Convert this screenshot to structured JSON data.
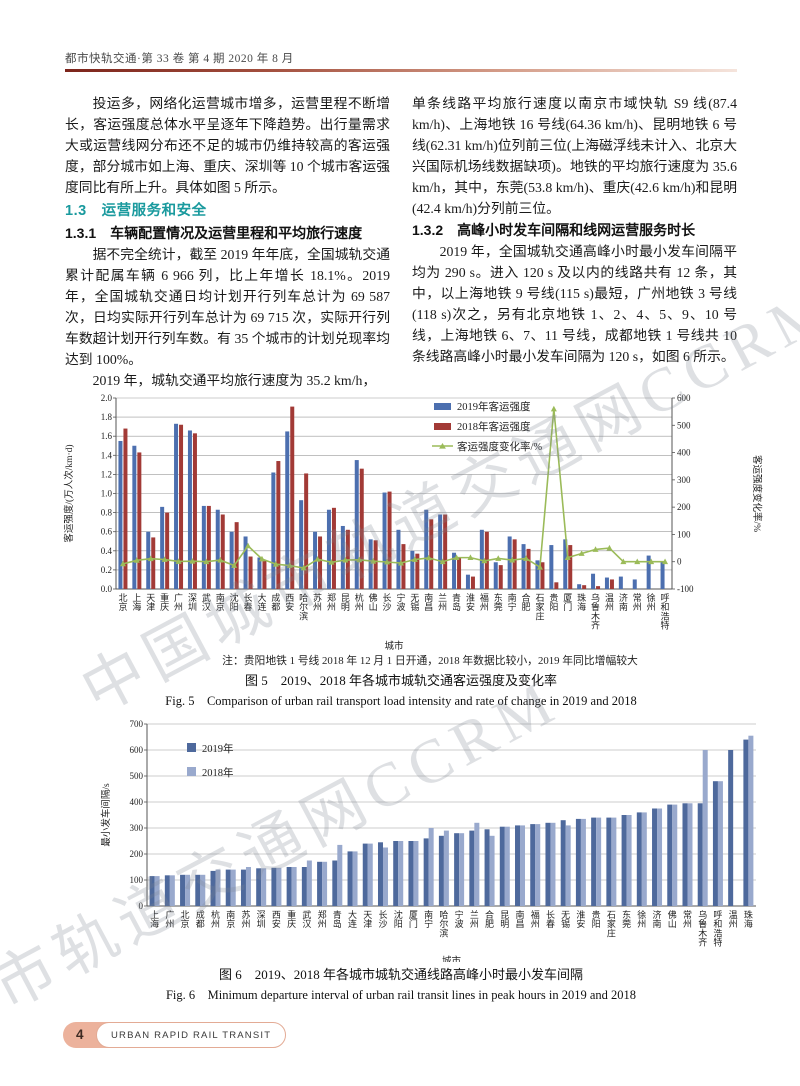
{
  "header": {
    "journal_line": "都市快轨交通·第 33 卷  第 4 期  2020 年 8 月"
  },
  "watermark": {
    "text": "中国城市轨道交通网CCRM"
  },
  "left_column": {
    "para1": "投运多，网络化运营城市增多，运营里程不断增长，客运强度总体水平呈逐年下降趋势。出行量需求大或运营线网分布还不足的城市仍维持较高的客运强度，部分城市如上海、重庆、深圳等 10 个城市客运强度同比有所上升。具体如图 5 所示。",
    "heading_1_3": "1.3　运营服务和安全",
    "heading_1_3_1": "1.3.1　车辆配置情况及运营里程和平均旅行速度",
    "para2": "据不完全统计，截至 2019 年年底，全国城轨交通累计配属车辆 6 966 列，比上年增长 18.1%。2019 年，全国城轨交通日均计划开行列车总计为 69 587 次，日均实际开行列车总计为 69 715 次，实际开行列车数超计划开行列车数。有 35 个城市的计划兑现率均达到 100%。",
    "para3": "2019 年，城轨交通平均旅行速度为 35.2 km/h，"
  },
  "right_column": {
    "para1": "单条线路平均旅行速度以南京市域快轨 S9 线(87.4 km/h)、上海地铁 16 号线(64.36 km/h)、昆明地铁 6 号线(62.31 km/h)位列前三位(上海磁浮线未计入、北京大兴国际机场线数据缺项)。地铁的平均旅行速度为 35.6 km/h，其中，东莞(53.8 km/h)、重庆(42.6 km/h)和昆明(42.4 km/h)分列前三位。",
    "heading_1_3_2": "1.3.2　高峰小时发车间隔和线网运营服务时长",
    "para2": "2019 年，全国城轨交通高峰小时最小发车间隔平均为 290 s。进入 120 s 及以内的线路共有 12 条，其中，以上海地铁 9 号线(115 s)最短，广州地铁 3 号线(118 s)次之，另有北京地铁 1、2、4、5、9、10 号线，上海地铁 6、7、11 号线，成都地铁 1 号线共 10 条线路高峰小时最小发车间隔为 120 s，如图 6 所示。"
  },
  "figure5": {
    "note": "注：贵阳地铁 1 号线 2018 年 12 月 1 日开通，2018 年数据比较小，2019 年同比增幅较大",
    "caption_zh": "图 5　2019、2018 年各城市城轨交通客运强度及变化率",
    "caption_en": "Fig. 5　Comparison of urban rail transport load intensity and rate of change in 2019 and 2018"
  },
  "figure6": {
    "caption_zh": "图 6　2019、2018 年各城市城轨交通线路高峰小时最小发车间隔",
    "caption_en": "Fig. 6　Minimum departure interval of urban rail transit lines in peak hours in 2019 and 2018"
  },
  "footer": {
    "page_number": "4",
    "journal_name": "URBAN RAPID RAIL TRANSIT"
  },
  "chart_data": [
    {
      "type": "bar",
      "title": "",
      "categories": [
        "北京",
        "上海",
        "天津",
        "重庆",
        "广州",
        "深圳",
        "武汉",
        "南京",
        "沈阳",
        "长春",
        "大连",
        "成都",
        "西安",
        "哈尔滨",
        "苏州",
        "郑州",
        "昆明",
        "杭州",
        "佛山",
        "长沙",
        "宁波",
        "无锡",
        "南昌",
        "兰州",
        "青岛",
        "淮安",
        "福州",
        "东莞",
        "南宁",
        "合肥",
        "石家庄",
        "贵阳",
        "厦门",
        "珠海",
        "乌鲁木齐",
        "温州",
        "济南",
        "常州",
        "徐州",
        "呼和浩特"
      ],
      "series": [
        {
          "name": "2019年客运强度",
          "kind": "bar",
          "color": "#4c6faf",
          "values": [
            1.55,
            1.5,
            0.6,
            0.86,
            1.73,
            1.66,
            0.87,
            0.83,
            0.6,
            0.55,
            0.33,
            1.22,
            1.65,
            0.93,
            0.6,
            0.83,
            0.66,
            1.35,
            0.52,
            1.01,
            0.62,
            0.4,
            0.83,
            0.78,
            0.38,
            0.15,
            0.62,
            0.28,
            0.55,
            0.47,
            0.3,
            0.46,
            0.52,
            0.05,
            0.16,
            0.12,
            0.13,
            0.1,
            0.35,
            0.28
          ]
        },
        {
          "name": "2018年客运强度",
          "kind": "bar",
          "color": "#a23a36",
          "values": [
            1.68,
            1.43,
            0.54,
            0.8,
            1.72,
            1.63,
            0.87,
            0.78,
            0.7,
            0.34,
            0.3,
            1.34,
            1.91,
            1.21,
            0.55,
            0.85,
            0.62,
            1.26,
            0.51,
            1.02,
            0.47,
            0.37,
            0.73,
            0.78,
            0.33,
            0.13,
            0.6,
            0.25,
            0.52,
            0.42,
            0.28,
            0.07,
            0.46,
            0.04,
            0.03,
            0.1,
            null,
            null,
            null,
            null
          ]
        },
        {
          "name": "客运强度变化率/%",
          "kind": "line",
          "axis": "right",
          "color": "#9bbb59",
          "values": [
            -8,
            5,
            11,
            8,
            1,
            2,
            0,
            6,
            -14,
            58,
            10,
            -9,
            -14,
            -23,
            9,
            -2,
            6,
            7,
            2,
            -1,
            -5,
            8,
            14,
            0,
            15,
            15,
            3,
            12,
            6,
            12,
            -20,
            560,
            15,
            30,
            45,
            50,
            0,
            0,
            0,
            0
          ]
        }
      ],
      "xlabel": "城市",
      "ylabel_left": "客运强度/(万人次/km·d)",
      "ylabel_right": "客运强度变化率/%",
      "ylim_left": [
        0,
        2.0
      ],
      "ytick_step_left": 0.2,
      "ylim_right": [
        -100,
        600
      ],
      "ytick_step_right": 100,
      "grid": true,
      "legend_position": "top-right"
    },
    {
      "type": "bar",
      "title": "",
      "categories": [
        "上海",
        "广州",
        "北京",
        "成都",
        "杭州",
        "南京",
        "苏州",
        "深圳",
        "西安",
        "重庆",
        "武汉",
        "郑州",
        "青岛",
        "大连",
        "天津",
        "长沙",
        "沈阳",
        "厦门",
        "南宁",
        "哈尔滨",
        "宁波",
        "兰州",
        "合肥",
        "昆明",
        "南昌",
        "福州",
        "长春",
        "无锡",
        "淮安",
        "贵阳",
        "石家庄",
        "东莞",
        "徐州",
        "济南",
        "佛山",
        "常州",
        "乌鲁木齐",
        "呼和浩特",
        "温州",
        "珠海"
      ],
      "series": [
        {
          "name": "2019年",
          "kind": "bar",
          "color": "#4e699c",
          "values": [
            115,
            118,
            120,
            120,
            135,
            140,
            140,
            145,
            147,
            150,
            150,
            170,
            175,
            210,
            240,
            245,
            250,
            250,
            260,
            270,
            280,
            290,
            295,
            305,
            310,
            315,
            320,
            330,
            335,
            340,
            340,
            350,
            360,
            375,
            390,
            395,
            395,
            480,
            600,
            640
          ]
        },
        {
          "name": "2018年",
          "kind": "bar",
          "color": "#99a9cd",
          "values": [
            115,
            118,
            120,
            120,
            140,
            140,
            150,
            145,
            147,
            150,
            175,
            170,
            235,
            210,
            240,
            225,
            250,
            250,
            300,
            290,
            280,
            320,
            270,
            305,
            310,
            315,
            320,
            310,
            335,
            340,
            340,
            350,
            360,
            375,
            390,
            395,
            600,
            480,
            null,
            655
          ]
        }
      ],
      "xlabel": "城市",
      "ylabel_left": "最小发车间隔/s",
      "ylim_left": [
        0,
        700
      ],
      "ytick_step_left": 100,
      "grid": true,
      "legend_position": "top-left"
    }
  ]
}
